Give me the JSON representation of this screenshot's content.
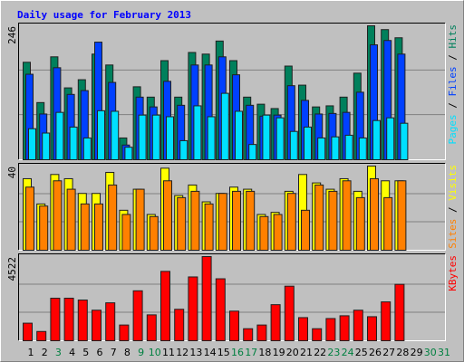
{
  "title": "Daily usage for February 2013",
  "days": [
    "1",
    "2",
    "3",
    "4",
    "5",
    "6",
    "7",
    "8",
    "9",
    "10",
    "11",
    "12",
    "13",
    "14",
    "15",
    "16",
    "17",
    "18",
    "19",
    "20",
    "21",
    "22",
    "23",
    "24",
    "25",
    "26",
    "27",
    "28",
    "29",
    "30",
    "31"
  ],
  "day_label_colors": [
    "#000000",
    "#000000",
    "#008040",
    "#000000",
    "#000000",
    "#000000",
    "#000000",
    "#000000",
    "#008040",
    "#008040",
    "#000000",
    "#000000",
    "#000000",
    "#000000",
    "#000000",
    "#008040",
    "#008040",
    "#000000",
    "#000000",
    "#000000",
    "#000000",
    "#000000",
    "#008040",
    "#008040",
    "#000000",
    "#000000",
    "#000000",
    "#000000",
    "#000000",
    "#008040",
    "#008040"
  ],
  "legend_separator": " / ",
  "chart_data": [
    {
      "type": "bar",
      "ylim": [
        0,
        246
      ],
      "yticks": [
        246
      ],
      "grid": true,
      "series": [
        {
          "name": "Hits",
          "color": "#00805c",
          "values": [
            179,
            105,
            189,
            132,
            147,
            194,
            174,
            40,
            134,
            115,
            182,
            115,
            197,
            194,
            218,
            182,
            115,
            102,
            94,
            172,
            137,
            97,
            99,
            115,
            159,
            246,
            239,
            224,
            null,
            null,
            null
          ]
        },
        {
          "name": "Files",
          "color": "#0040ff",
          "values": [
            157,
            84,
            169,
            120,
            127,
            216,
            142,
            27,
            115,
            97,
            144,
            100,
            174,
            174,
            189,
            156,
            100,
            80,
            82,
            136,
            109,
            84,
            85,
            87,
            124,
            211,
            219,
            194,
            null,
            null,
            null
          ]
        },
        {
          "name": "Pages",
          "color": "#00e0ff",
          "values": [
            57,
            49,
            87,
            60,
            40,
            90,
            89,
            23,
            82,
            82,
            79,
            35,
            99,
            79,
            122,
            89,
            28,
            82,
            77,
            52,
            60,
            40,
            42,
            45,
            40,
            72,
            77,
            67,
            null,
            null,
            null
          ]
        }
      ]
    },
    {
      "type": "bar",
      "ylim": [
        0,
        40
      ],
      "yticks": [
        40
      ],
      "grid": true,
      "series": [
        {
          "name": "Visits",
          "color": "#ffff00",
          "values": [
            34,
            22,
            36,
            34,
            27,
            27,
            37,
            19,
            29,
            17,
            39,
            26,
            31,
            23,
            27,
            30,
            29,
            17,
            18,
            28,
            36,
            32,
            29,
            34,
            28,
            40,
            33,
            33,
            null,
            null,
            null
          ]
        },
        {
          "name": "Sites",
          "color": "#ff8000",
          "values": [
            30,
            21,
            33,
            29,
            22,
            22,
            31,
            17,
            29,
            16,
            33,
            25,
            28,
            22,
            27,
            28,
            28,
            16,
            17,
            27,
            19,
            31,
            28,
            33,
            25,
            34,
            25,
            33,
            null,
            null,
            null
          ]
        }
      ]
    },
    {
      "type": "bar",
      "ylim": [
        0,
        4522
      ],
      "yticks": [
        4522
      ],
      "grid": true,
      "series": [
        {
          "name": "KBytes",
          "color": "#ff0000",
          "values": [
            944,
            497,
            2286,
            2286,
            2186,
            1640,
            2037,
            845,
            2683,
            1391,
            3727,
            1690,
            3429,
            4522,
            3329,
            1590,
            646,
            845,
            1938,
            2932,
            1242,
            646,
            1193,
            1342,
            1640,
            1292,
            2087,
            3031,
            null,
            null,
            null
          ]
        }
      ]
    }
  ]
}
